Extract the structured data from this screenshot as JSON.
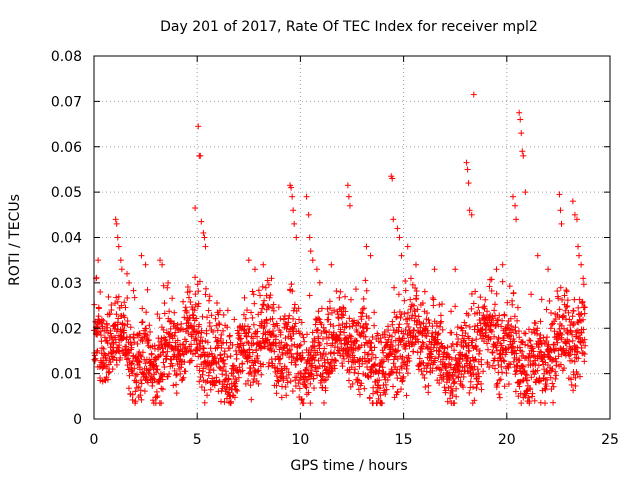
{
  "chart_data": {
    "type": "scatter",
    "title": "Day 201 of 2017, Rate Of TEC Index for receiver mpl2",
    "xlabel": "GPS time / hours",
    "ylabel": "ROTI / TECUs",
    "xlim": [
      0,
      25
    ],
    "ylim": [
      0,
      0.08
    ],
    "grid": true,
    "marker": "+",
    "series": [
      {
        "name": "ROTI",
        "color": "#ff0000",
        "x": [
          0.1,
          0.2,
          0.3,
          0.4,
          1.05,
          1.1,
          1.15,
          1.2,
          1.3,
          1.35,
          1.6,
          1.7,
          2.3,
          2.5,
          3.2,
          3.3,
          4.9,
          5.05,
          5.1,
          5.15,
          5.2,
          5.3,
          5.35,
          5.4,
          7.5,
          7.8,
          8.2,
          8.6,
          9.5,
          9.55,
          9.6,
          9.65,
          9.7,
          9.8,
          10.3,
          10.4,
          10.45,
          10.5,
          10.6,
          10.8,
          11.5,
          12.3,
          12.35,
          12.4,
          13.2,
          13.4,
          14.4,
          14.45,
          14.5,
          14.7,
          14.8,
          14.9,
          15.2,
          15.6,
          16.5,
          17.5,
          18.05,
          18.1,
          18.15,
          18.2,
          18.3,
          18.4,
          19.5,
          19.8,
          20.3,
          20.4,
          20.45,
          20.6,
          20.65,
          20.7,
          20.75,
          20.8,
          20.9,
          21.5,
          22.0,
          22.55,
          22.6,
          22.65,
          23.2,
          23.3,
          23.4,
          23.45,
          23.5,
          23.6,
          23.7
        ],
        "y": [
          0.031,
          0.035,
          0.028,
          0.02,
          0.044,
          0.043,
          0.04,
          0.038,
          0.035,
          0.033,
          0.032,
          0.03,
          0.036,
          0.034,
          0.035,
          0.034,
          0.0465,
          0.0645,
          0.058,
          0.058,
          0.0435,
          0.041,
          0.04,
          0.038,
          0.035,
          0.033,
          0.034,
          0.031,
          0.0515,
          0.051,
          0.049,
          0.046,
          0.043,
          0.04,
          0.049,
          0.045,
          0.04,
          0.037,
          0.035,
          0.033,
          0.034,
          0.0515,
          0.049,
          0.047,
          0.038,
          0.036,
          0.0535,
          0.053,
          0.044,
          0.042,
          0.04,
          0.036,
          0.038,
          0.034,
          0.033,
          0.033,
          0.0565,
          0.055,
          0.052,
          0.046,
          0.045,
          0.0715,
          0.033,
          0.034,
          0.049,
          0.047,
          0.044,
          0.0675,
          0.066,
          0.063,
          0.059,
          0.058,
          0.05,
          0.036,
          0.033,
          0.0495,
          0.046,
          0.043,
          0.048,
          0.045,
          0.044,
          0.038,
          0.036,
          0.034,
          0.031
        ]
      }
    ],
    "bulk_envelope": {
      "description": "dense cloud of points spanning the full day",
      "x_range": [
        0,
        23.8
      ],
      "typical_y": 0.014,
      "y_min": 0.0035,
      "y_max_typical": 0.028
    }
  },
  "axes": {
    "x_ticks": [
      {
        "value": 0,
        "label": "0"
      },
      {
        "value": 5,
        "label": "5"
      },
      {
        "value": 10,
        "label": "10"
      },
      {
        "value": 15,
        "label": "15"
      },
      {
        "value": 20,
        "label": "20"
      },
      {
        "value": 25,
        "label": "25"
      }
    ],
    "y_ticks": [
      {
        "value": 0,
        "label": "0"
      },
      {
        "value": 0.01,
        "label": "0.01"
      },
      {
        "value": 0.02,
        "label": "0.02"
      },
      {
        "value": 0.03,
        "label": "0.03"
      },
      {
        "value": 0.04,
        "label": "0.04"
      },
      {
        "value": 0.05,
        "label": "0.05"
      },
      {
        "value": 0.06,
        "label": "0.06"
      },
      {
        "value": 0.07,
        "label": "0.07"
      },
      {
        "value": 0.08,
        "label": "0.08"
      }
    ]
  }
}
